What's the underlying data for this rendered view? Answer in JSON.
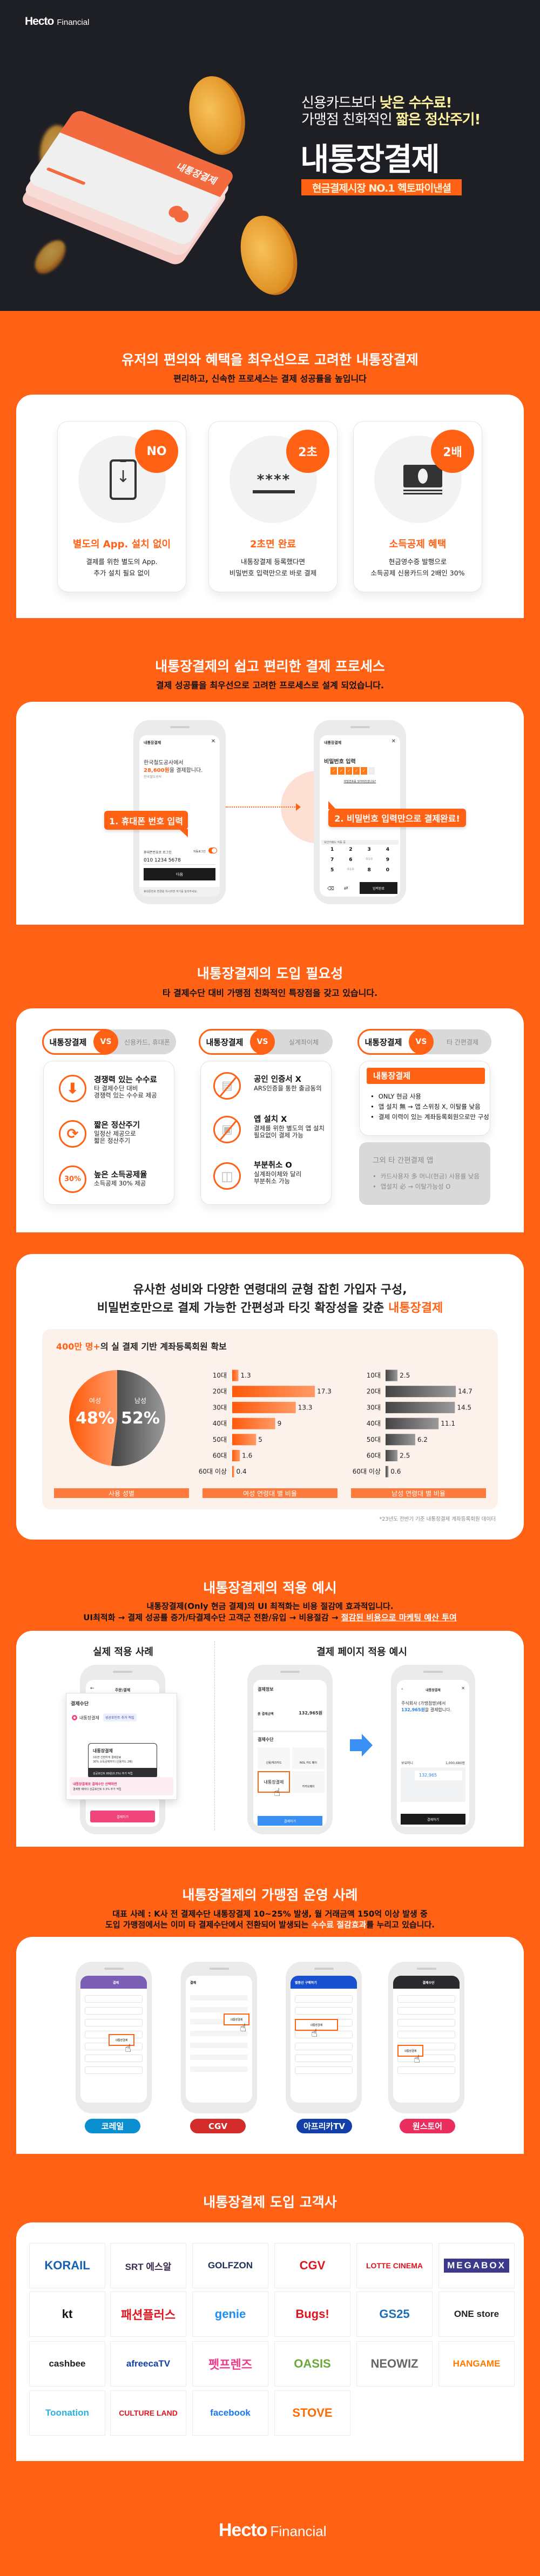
{
  "brand": {
    "logo_main": "Hecto",
    "logo_suffix": "Financial"
  },
  "hero": {
    "line1_prefix": "신용카드보다 ",
    "line1_highlight": "낮은 수수료!",
    "line2_prefix": "가맹점 친화적인 ",
    "line2_highlight": "짧은 정산주기!",
    "title": "내통장결제",
    "badge": "현금결제시장 NO.1 헥토파이낸셜",
    "card_label": "내통장결제"
  },
  "benefits": {
    "title": "유저의 편의와 혜택을 최우선으로 고려한 내통장결제",
    "subtitle": "편리하고, 신속한 프로세스는 결제 성공률을 높입니다",
    "cards": [
      {
        "badge": "NO",
        "icon": "phone-download-icon",
        "title": "별도의 App. 설치 없이",
        "desc": [
          "결제를 위한 별도의 App.",
          "추가 설치 필요 없이"
        ]
      },
      {
        "badge": "2초",
        "icon": "password-icon",
        "mask": "****",
        "title": "2초면 완료",
        "desc": [
          "내통장결제 등록했다면",
          "비밀번호 입력만으로 바로 결제"
        ]
      },
      {
        "badge": "2배",
        "icon": "cash-icon",
        "title": "소득공제 혜택",
        "desc": [
          "현금영수증 발행으로",
          "소득공제 신용카드의 2배인 30%"
        ]
      }
    ]
  },
  "process": {
    "title": "내통장결제의 쉽고 편리한 결제 프로세스",
    "subtitle": "결제 성공률을 최우선으로 고려한 프로세스로 설계 되었습니다.",
    "step1": "1. 휴대폰 번호 입력",
    "step2": "2. 비밀번호 입력만으로 결제완료!",
    "phone1": {
      "header": "내통장결제",
      "merchant": "한국철도공사에서",
      "amount": "28,600원",
      "amount_suffix": "을 결제합니다.",
      "merchant_sub": "한국철도공사",
      "login_label": "휴대폰번호로 로그인",
      "auto_login": "자동로그인",
      "phone_value": "010 1234 5678",
      "next": "다음",
      "footer": "휴대폰번호 변경을 하시려면 여기를 눌러주세요."
    },
    "phone2": {
      "header": "내통장결제",
      "title": "비밀번호 입력",
      "pin_filled": 5,
      "pin_total": 6,
      "forgot": "비밀번호를 잊어버리셨나요?",
      "secure": "보안키패드 작동 중",
      "keys": [
        "1",
        "2",
        "3",
        "4",
        "7",
        "6",
        "010",
        "9",
        "5",
        "010",
        "8",
        "0"
      ],
      "done": "입력완료"
    }
  },
  "need": {
    "title": "내통장결제의 도입 필요성",
    "subtitle": "타 결제수단 대비 가맹점 친화적인 특장점을 갖고 있습니다.",
    "ours": "내통장결제",
    "vs": "VS",
    "col1": {
      "other": "신용카드, 휴대폰",
      "items": [
        {
          "icon": "arrow-down-icon",
          "title": "경쟁력 있는 수수료",
          "desc": [
            "타 결제수단 대비",
            "경쟁력 있는 수수료 제공"
          ]
        },
        {
          "icon": "cycle-icon",
          "title": "짧은 정산주기",
          "desc": [
            "일정산 제공으로",
            "짧은 정산주기"
          ]
        },
        {
          "icon_text": "30%",
          "title": "높은 소득공제율",
          "desc": [
            "소득공제 30% 제공"
          ]
        }
      ]
    },
    "col2": {
      "other": "실계좌이체",
      "items": [
        {
          "icon": "certificate-prohibited-icon",
          "title": "공인 인증서 X",
          "desc": [
            "ARS인증을 통한 출금동의"
          ]
        },
        {
          "icon": "app-prohibited-icon",
          "title": "앱 설치 X",
          "desc": [
            "결제를 위한 별도의 앱 설치",
            "필요없이 결제 가능"
          ]
        },
        {
          "icon": "partial-cancel-icon",
          "title": "부분취소 O",
          "desc": [
            "실계좌이체와 달리",
            "부분취소 가능"
          ]
        }
      ]
    },
    "col3": {
      "other": "타 간편결제",
      "ours_title": "내통장결제",
      "ours_bullets": [
        "ONLY 현금 사용",
        "앱 설치 無 → 앱 스위칭 X, 이탈률 낮음",
        "결제 이력이 있는 계좌등록회원으로만 구성"
      ],
      "others_title": "그외 타 간편결제 앱",
      "others_bullets": [
        "카드사용자 多 머니(현금) 사용률 낮음",
        "앱설치 必 → 이탈가능성 O"
      ]
    }
  },
  "users": {
    "title_line1": "유사한 성비와 다양한 연령대의 균형 잡힌 가입자 구성,",
    "title_line2_prefix": "비밀번호만으로 결제 가능한 간편성과 타깃 확장성을 갖춘 ",
    "title_line2_highlight": "내통장결제",
    "panel_highlight": "400만 명+",
    "panel_rest": "의 실 결제 기반 계좌등록회원 확보",
    "footnote": "*23년도 전반기 기준 내통장결제 계좌등록회원 데이터"
  },
  "chart_data": [
    {
      "type": "pie",
      "title": "사용 성별",
      "slices": [
        {
          "label": "여성",
          "value": 48,
          "display": "48%",
          "color": "#ff6a20"
        },
        {
          "label": "남성",
          "value": 52,
          "display": "52%",
          "color": "#555555"
        }
      ]
    },
    {
      "type": "bar",
      "orientation": "horizontal",
      "title": "여성 연령대 별 비율",
      "categories": [
        "10대",
        "20대",
        "30대",
        "40대",
        "50대",
        "60대",
        "60대 이상"
      ],
      "values": [
        1.3,
        17.3,
        13.3,
        9,
        5,
        1.6,
        0.4
      ],
      "color": "#ff6115"
    },
    {
      "type": "bar",
      "orientation": "horizontal",
      "title": "남성 연령대 별 비율",
      "categories": [
        "10대",
        "20대",
        "30대",
        "40대",
        "50대",
        "60대",
        "60대 이상"
      ],
      "values": [
        2.5,
        14.7,
        14.5,
        11.1,
        6.2,
        2.5,
        0.6
      ],
      "color": "#555555"
    }
  ],
  "apply": {
    "title": "내통장결제의 적용 예시",
    "line1": "내통장결제(Only 현금 결제)의 UI 최적화는 비용 절감에 효과적입니다.",
    "line2_prefix": "UI최적화 → 결제 성공률 증가/타결제수단 고객군 전환/유입 → 비용절감 → ",
    "line2_link": "절감된 비용으로 마케팅 예산 투여",
    "left_title": "실제 적용 사례",
    "right_title": "결제 페이지 적용 예시",
    "case": {
      "header": "주문/결제",
      "section": "결제수단",
      "option": "내통장결제",
      "option_tag": "성공포인트 추가 적립",
      "card_title": "내통장결제",
      "card_line1": "3초면 간편하게 결제완료",
      "card_line2": "30% 소득공제까지 (신용카드 2배)",
      "card_footer": "성공포인트 89원(0.3%) 추가 적립",
      "promo_title": "내통장결제로 결제수단 선택하면",
      "promo_desc": "결제할 때마다 성공포인트 0.3% 추가 적립",
      "pay_button": "결제하기"
    },
    "before": {
      "section1": "결제정보",
      "total_label": "총 결제금액",
      "total": "132,965원",
      "section2": "결제수단",
      "methods": [
        "신용/체크카드",
        "NOL 카드 페이",
        "내통장결제",
        "카카오페이"
      ],
      "pay_button": "결제하기"
    },
    "after": {
      "header": "내통장결제",
      "merchant": "주식회사 (가맹점명)에서",
      "amount": "132,965원",
      "amount_suffix": "을 결제합니다.",
      "balance_label": "보유머니",
      "balance": "1,000,680원",
      "use_value": "132,965",
      "pay_button": "결제하기"
    }
  },
  "merchants": {
    "title": "내통장결제의 가맹점 운영 사례",
    "line1": "대표 사례 : K사 전 결제수단 내통장결제 10~25% 발생, 월 거래금액 150억 이상 발생 중",
    "line2_prefix": "도입 가맹점에서는 이미 타 결제수단에서 전환되어 발생되는 ",
    "line2_highlight": "수수료 절감효과",
    "line2_suffix": "를 누리고 있습니다.",
    "highlight_label": "내통장결제",
    "items": [
      {
        "name": "코레일",
        "color": "#0a8fd0",
        "header_color": "#7b5fb5",
        "header": "결제"
      },
      {
        "name": "CGV",
        "color": "#d42b2b",
        "header_color": "#ffffff",
        "header": "결제"
      },
      {
        "name": "아프리카TV",
        "color": "#1240a8",
        "header_color": "#1a4fd0",
        "header": "별풍선 구매하기"
      },
      {
        "name": "원스토어",
        "color": "#ea2f5f",
        "header_color": "#2a2a2e",
        "header": "결제수단"
      }
    ]
  },
  "clients": {
    "title": "내통장결제 도입 고객사",
    "logos": [
      {
        "name": "KORAIL",
        "color": "#1560b0"
      },
      {
        "name": "SRT 에스알",
        "color": "#3b2b4f"
      },
      {
        "name": "GOLFZON",
        "color": "#1c2e5a"
      },
      {
        "name": "CGV",
        "color": "#e0141e"
      },
      {
        "name": "LOTTE CINEMA",
        "color": "#e0141e"
      },
      {
        "name": "MEGABOX",
        "color": "#ffffff",
        "bg": "#3d3a8c"
      },
      {
        "name": "kt",
        "color": "#111111"
      },
      {
        "name": "패션플러스",
        "color": "#e0141e"
      },
      {
        "name": "genie",
        "color": "#1d8ff0"
      },
      {
        "name": "Bugs!",
        "color": "#e0141e"
      },
      {
        "name": "GS25",
        "color": "#1a6fb8"
      },
      {
        "name": "ONE store",
        "color": "#222222"
      },
      {
        "name": "cashbee",
        "color": "#222222"
      },
      {
        "name": "afreecaTV",
        "color": "#1240a8"
      },
      {
        "name": "펫프렌즈",
        "color": "#f03a8a"
      },
      {
        "name": "OASIS",
        "color": "#6aa83a"
      },
      {
        "name": "NEOWIZ",
        "color": "#666666"
      },
      {
        "name": "HANGAME",
        "color": "#ff7a00"
      },
      {
        "name": "Toonation",
        "color": "#2ab0e0"
      },
      {
        "name": "CULTURE LAND",
        "color": "#e0141e"
      },
      {
        "name": "facebook",
        "color": "#1877f2"
      },
      {
        "name": "STOVE",
        "color": "#ff6a00"
      }
    ]
  },
  "colors": {
    "brand_orange": "#ff6115",
    "hero_bg": "#1e1f24",
    "highlight_yellow": "#fff3a0"
  }
}
